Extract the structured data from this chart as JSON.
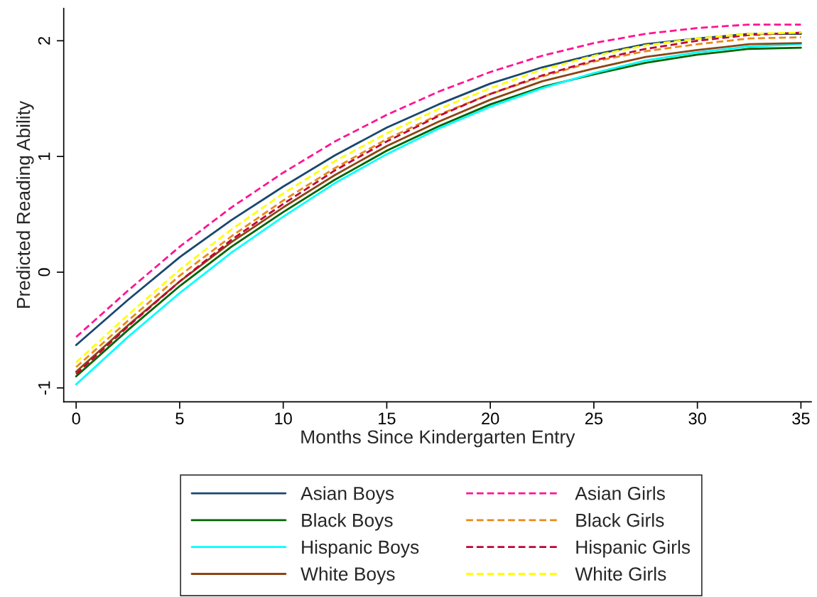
{
  "chart_data": {
    "type": "line",
    "xlabel": "Months Since Kindergarten Entry",
    "ylabel": "Predicted Reading Ability",
    "x": [
      0,
      2.5,
      5,
      7.5,
      10,
      12.5,
      15,
      17.5,
      20,
      22.5,
      25,
      27.5,
      30,
      32.5,
      35
    ],
    "series": [
      {
        "name": "Asian Boys",
        "color": "#1a476f",
        "line_style": "solid",
        "values": [
          -0.63,
          -0.24,
          0.13,
          0.45,
          0.74,
          1.01,
          1.25,
          1.45,
          1.63,
          1.77,
          1.88,
          1.97,
          2.02,
          2.06,
          2.06
        ]
      },
      {
        "name": "Black Boys",
        "color": "#006400",
        "line_style": "solid",
        "values": [
          -0.9,
          -0.5,
          -0.12,
          0.22,
          0.52,
          0.8,
          1.05,
          1.26,
          1.45,
          1.6,
          1.71,
          1.81,
          1.88,
          1.93,
          1.94
        ]
      },
      {
        "name": "Hispanic Boys",
        "color": "#00ffff",
        "line_style": "solid",
        "values": [
          -0.97,
          -0.56,
          -0.18,
          0.17,
          0.48,
          0.77,
          1.02,
          1.24,
          1.43,
          1.59,
          1.72,
          1.83,
          1.9,
          1.95,
          1.97
        ]
      },
      {
        "name": "White Boys",
        "color": "#8b4513",
        "line_style": "solid",
        "values": [
          -0.86,
          -0.46,
          -0.08,
          0.26,
          0.56,
          0.84,
          1.09,
          1.3,
          1.49,
          1.65,
          1.76,
          1.86,
          1.92,
          1.97,
          1.98
        ]
      },
      {
        "name": "Asian Girls",
        "color": "#ff1493",
        "line_style": "dashed",
        "values": [
          -0.56,
          -0.16,
          0.22,
          0.56,
          0.86,
          1.13,
          1.36,
          1.56,
          1.73,
          1.87,
          1.98,
          2.06,
          2.11,
          2.14,
          2.14
        ]
      },
      {
        "name": "Black Girls",
        "color": "#e8891a",
        "line_style": "dashed",
        "values": [
          -0.82,
          -0.42,
          -0.03,
          0.31,
          0.62,
          0.9,
          1.15,
          1.36,
          1.54,
          1.69,
          1.82,
          1.91,
          1.97,
          2.02,
          2.03
        ]
      },
      {
        "name": "Hispanic Girls",
        "color": "#c10534",
        "line_style": "dashed",
        "values": [
          -0.88,
          -0.47,
          -0.08,
          0.28,
          0.59,
          0.88,
          1.13,
          1.35,
          1.54,
          1.7,
          1.83,
          1.93,
          2.0,
          2.05,
          2.07
        ]
      },
      {
        "name": "White Girls",
        "color": "#ffff00",
        "line_style": "dashed",
        "values": [
          -0.78,
          -0.37,
          0.02,
          0.37,
          0.68,
          0.96,
          1.2,
          1.41,
          1.59,
          1.75,
          1.87,
          1.96,
          2.02,
          2.06,
          2.07
        ]
      }
    ],
    "xlim": [
      -0.6,
      35.5
    ],
    "ylim": [
      -1.12,
      2.28
    ],
    "xticks": [
      0,
      5,
      10,
      15,
      20,
      25,
      30,
      35
    ],
    "yticks": [
      -1,
      0,
      1,
      2
    ],
    "grid": false,
    "legend": "bottom"
  }
}
